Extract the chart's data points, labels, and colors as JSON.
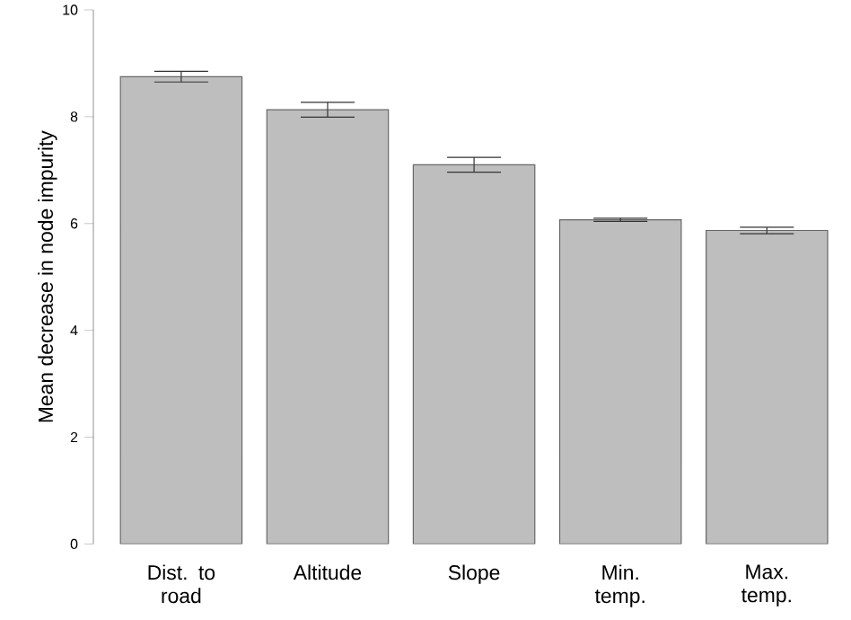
{
  "chart_data": {
    "type": "bar",
    "ylabel": "Mean decrease in node impurity",
    "categories": [
      "Dist. to road",
      "Altitude",
      "Slope",
      "Min. temp.",
      "Max. temp."
    ],
    "values": [
      8.75,
      8.13,
      7.1,
      6.07,
      5.87
    ],
    "errors": [
      0.1,
      0.14,
      0.14,
      0.03,
      0.06
    ],
    "color": "#bebebe",
    "ylim": [
      0,
      10
    ],
    "yticks": [
      0,
      2,
      4,
      6,
      8,
      10
    ]
  }
}
